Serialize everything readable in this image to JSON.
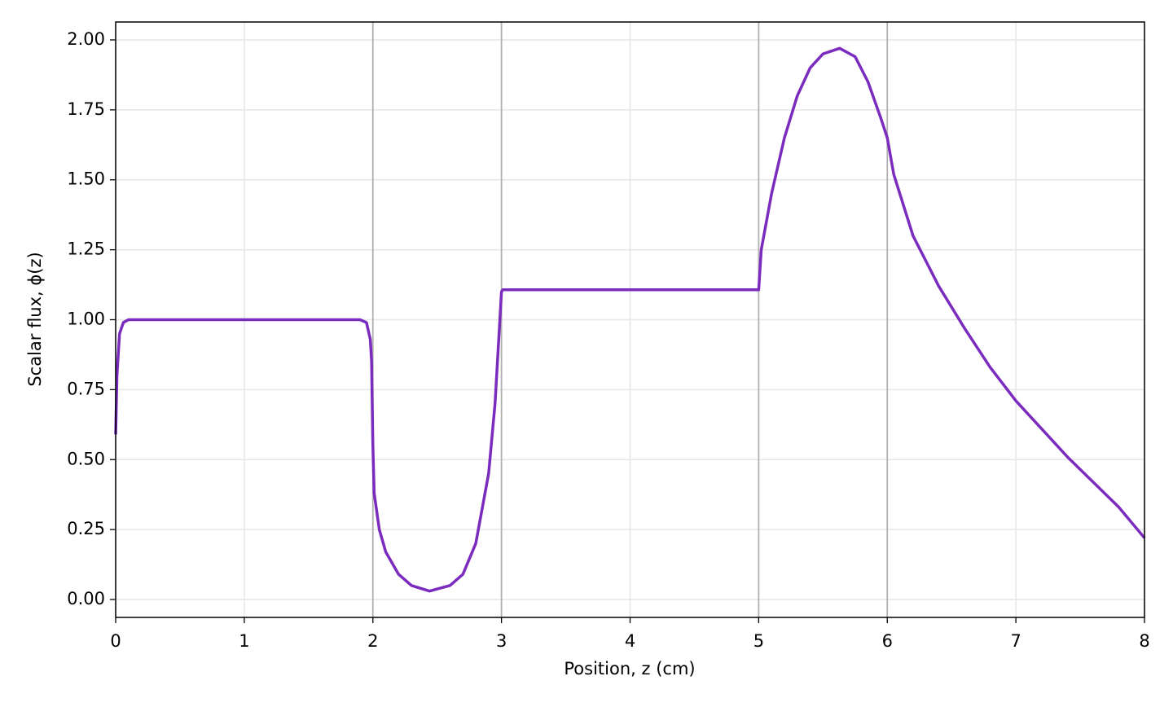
{
  "chart_data": {
    "type": "line",
    "xlabel": "Position, z (cm)",
    "ylabel": "Scalar flux, ϕ(z)",
    "x": [
      0,
      0.01,
      0.03,
      0.06,
      0.1,
      1.9,
      1.95,
      1.98,
      1.99,
      2.0,
      2.01,
      2.05,
      2.1,
      2.2,
      2.3,
      2.44,
      2.6,
      2.7,
      2.8,
      2.9,
      2.95,
      3.0,
      3.01,
      5.0,
      5.02,
      5.1,
      5.2,
      5.3,
      5.4,
      5.5,
      5.63,
      5.75,
      5.85,
      5.95,
      6.0,
      6.05,
      6.2,
      6.4,
      6.6,
      6.8,
      7.0,
      7.2,
      7.4,
      7.6,
      7.8,
      8.0
    ],
    "series": [
      {
        "color": "#7b2cbf",
        "values": [
          0.59,
          0.8,
          0.95,
          0.99,
          1.0,
          1.0,
          0.99,
          0.93,
          0.85,
          0.55,
          0.38,
          0.25,
          0.17,
          0.09,
          0.05,
          0.03,
          0.05,
          0.09,
          0.2,
          0.45,
          0.7,
          1.1,
          1.107,
          1.107,
          1.25,
          1.45,
          1.65,
          1.8,
          1.9,
          1.95,
          1.97,
          1.94,
          1.85,
          1.72,
          1.65,
          1.52,
          1.3,
          1.12,
          0.97,
          0.83,
          0.71,
          0.61,
          0.51,
          0.42,
          0.33,
          0.22
        ]
      }
    ],
    "xlim": [
      0,
      8
    ],
    "ylim": [
      -0.064,
      2.064
    ],
    "xticks": [
      0,
      1,
      2,
      3,
      4,
      5,
      6,
      7,
      8
    ],
    "yticks": [
      {
        "value": 0,
        "label": "0.00"
      },
      {
        "value": 0.25,
        "label": "0.25"
      },
      {
        "value": 0.5,
        "label": "0.50"
      },
      {
        "value": 0.75,
        "label": "0.75"
      },
      {
        "value": 1,
        "label": "1.00"
      },
      {
        "value": 1.25,
        "label": "1.25"
      },
      {
        "value": 1.5,
        "label": "1.50"
      },
      {
        "value": 1.75,
        "label": "1.75"
      },
      {
        "value": 2,
        "label": "2.00"
      }
    ],
    "vlines": [
      2,
      3,
      5,
      6
    ],
    "grid": true
  }
}
